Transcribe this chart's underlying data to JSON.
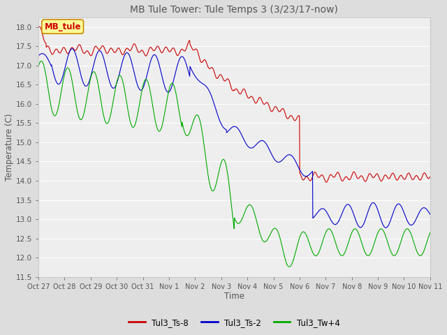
{
  "title": "MB Tule Tower: Tule Temps 3 (3/23/17-now)",
  "xlabel": "Time",
  "ylabel": "Temperature (C)",
  "ylim": [
    11.5,
    18.25
  ],
  "yticks": [
    11.5,
    12.0,
    12.5,
    13.0,
    13.5,
    14.0,
    14.5,
    15.0,
    15.5,
    16.0,
    16.5,
    17.0,
    17.5,
    18.0
  ],
  "xtick_labels": [
    "Oct 27",
    "Oct 28",
    "Oct 29",
    "Oct 30",
    "Oct 31",
    "Nov 1",
    "Nov 2",
    "Nov 3",
    "Nov 4",
    "Nov 5",
    "Nov 6",
    "Nov 7",
    "Nov 8",
    "Nov 9",
    "Nov 10",
    "Nov 11"
  ],
  "colors": {
    "Tul3_Ts-8": "#cc0000",
    "Tul3_Ts-2": "#0000cc",
    "Tul3_Tw+4": "#00aa00"
  },
  "bg_color": "#dddddd",
  "plot_bg": "#eeeeee",
  "grid_color": "#ffffff",
  "annotation_box": {
    "text": "MB_tule",
    "facecolor": "#ffff99",
    "edgecolor": "#cc8800",
    "textcolor": "#cc0000"
  },
  "legend_entries": [
    "Tul3_Ts-8",
    "Tul3_Ts-2",
    "Tul3_Tw+4"
  ]
}
